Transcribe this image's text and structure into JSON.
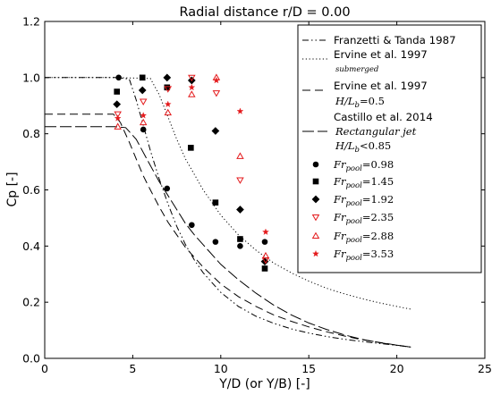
{
  "chart_data": {
    "type": "line",
    "title": "Radial distance r/D = 0.00",
    "xlabel": "Y/D (or Y/B) [-]",
    "ylabel": "Cp [-]",
    "xlim": [
      0,
      25
    ],
    "ylim": [
      0,
      1.2
    ],
    "xticks": [
      "0",
      "5",
      "10",
      "15",
      "20",
      "25"
    ],
    "yticks": [
      "0.0",
      "0.2",
      "0.4",
      "0.6",
      "0.8",
      "1.0",
      "1.2"
    ],
    "grid": false,
    "legend_position": "top-right",
    "series": [
      {
        "name": "Franzetti & Tanda 1987",
        "kind": "line",
        "style": "dashdotdot",
        "legend_lines": [
          "Franzetti & Tanda 1987"
        ],
        "x": [
          0,
          1,
          2,
          3,
          4,
          4.8,
          5.2,
          5.6,
          6,
          6.5,
          7,
          7.5,
          8,
          8.5,
          9,
          10,
          11,
          12,
          13,
          14,
          15,
          16,
          17,
          18,
          19,
          20,
          20.8
        ],
        "y": [
          1.0,
          1.0,
          1.0,
          1.0,
          1.0,
          0.995,
          0.92,
          0.83,
          0.74,
          0.64,
          0.55,
          0.47,
          0.405,
          0.35,
          0.305,
          0.235,
          0.185,
          0.15,
          0.125,
          0.105,
          0.09,
          0.078,
          0.068,
          0.06,
          0.053,
          0.046,
          0.04
        ]
      },
      {
        "name": "Ervine et al. 1997 submerged",
        "kind": "line",
        "style": "dotted",
        "legend_lines": [
          "Ervine et al. 1997",
          "submerged"
        ],
        "x": [
          0,
          2,
          4,
          6,
          6.5,
          7,
          7.5,
          8,
          8.5,
          9,
          9.5,
          10,
          11,
          12,
          13,
          14,
          15,
          16,
          17,
          18,
          19,
          20,
          20.8
        ],
        "y": [
          1.0,
          1.0,
          1.0,
          0.997,
          0.94,
          0.86,
          0.78,
          0.71,
          0.655,
          0.6,
          0.555,
          0.51,
          0.44,
          0.385,
          0.34,
          0.305,
          0.275,
          0.25,
          0.23,
          0.213,
          0.198,
          0.185,
          0.175
        ]
      },
      {
        "name": "Ervine et al. 1997 H/Lb=0.5",
        "kind": "line",
        "style": "dashed",
        "legend_lines": [
          "Ervine et al. 1997",
          "H/L",
          "b",
          "=0.5"
        ],
        "x": [
          0,
          2,
          3.9,
          4.3,
          4.8,
          5.2,
          5.6,
          6,
          6.5,
          7,
          7.5,
          8,
          9,
          10,
          11,
          12,
          13,
          14,
          15,
          16,
          17,
          18,
          19,
          20,
          20.8
        ],
        "y": [
          0.87,
          0.87,
          0.87,
          0.84,
          0.77,
          0.71,
          0.65,
          0.6,
          0.54,
          0.485,
          0.44,
          0.395,
          0.325,
          0.265,
          0.22,
          0.185,
          0.155,
          0.132,
          0.112,
          0.095,
          0.08,
          0.067,
          0.057,
          0.047,
          0.04
        ]
      },
      {
        "name": "Castillo et al. 2014",
        "kind": "line",
        "style": "longdash",
        "legend_lines": [
          "Castillo et al. 2014",
          "Rectangular jet",
          "H/L",
          "b",
          "<0.85"
        ],
        "x": [
          0,
          2,
          4,
          4.6,
          5.2,
          5.8,
          6.5,
          7,
          7.5,
          8,
          8.5,
          9,
          10,
          11,
          12,
          13,
          14,
          15,
          16,
          17,
          18,
          19,
          20,
          20.8
        ],
        "y": [
          0.825,
          0.825,
          0.825,
          0.822,
          0.78,
          0.71,
          0.63,
          0.58,
          0.53,
          0.48,
          0.44,
          0.405,
          0.335,
          0.28,
          0.232,
          0.19,
          0.155,
          0.126,
          0.103,
          0.084,
          0.068,
          0.056,
          0.047,
          0.04
        ]
      },
      {
        "name": "Fr_pool = 0.98",
        "kind": "scatter",
        "marker": "circle",
        "color": "#000000",
        "legend_main": "Fr",
        "legend_sub": "pool",
        "legend_value": "=0.98",
        "x": [
          4.2,
          5.6,
          6.95,
          8.35,
          9.7,
          11.1,
          12.5
        ],
        "y": [
          1.0,
          0.815,
          0.605,
          0.475,
          0.415,
          0.4,
          0.415
        ]
      },
      {
        "name": "Fr_pool = 1.45",
        "kind": "scatter",
        "marker": "square",
        "color": "#000000",
        "legend_main": "Fr",
        "legend_sub": "pool",
        "legend_value": "=1.45",
        "x": [
          4.1,
          5.55,
          6.95,
          8.3,
          9.7,
          11.1,
          12.5
        ],
        "y": [
          0.95,
          1.0,
          0.965,
          0.75,
          0.555,
          0.425,
          0.32
        ]
      },
      {
        "name": "Fr_pool = 1.92",
        "kind": "scatter",
        "marker": "diamond",
        "color": "#000000",
        "legend_main": "Fr",
        "legend_sub": "pool",
        "legend_value": "=1.92",
        "x": [
          4.1,
          5.55,
          6.95,
          8.35,
          9.7,
          11.1,
          12.5
        ],
        "y": [
          0.905,
          0.955,
          1.0,
          0.99,
          0.81,
          0.53,
          0.345
        ]
      },
      {
        "name": "Fr_pool = 2.35",
        "kind": "scatter",
        "marker": "triangle-down",
        "color": "#e41a1c",
        "legend_main": "Fr",
        "legend_sub": "pool",
        "legend_value": "=2.35",
        "x": [
          4.15,
          5.6,
          7.0,
          8.35,
          9.75,
          11.1,
          12.55
        ],
        "y": [
          0.87,
          0.915,
          0.96,
          1.0,
          0.945,
          0.635,
          0.35
        ]
      },
      {
        "name": "Fr_pool = 2.88",
        "kind": "scatter",
        "marker": "triangle-up",
        "color": "#e41a1c",
        "legend_main": "Fr",
        "legend_sub": "pool",
        "legend_value": "=2.88",
        "x": [
          4.15,
          5.6,
          7.0,
          8.35,
          9.75,
          11.1,
          12.55
        ],
        "y": [
          0.825,
          0.84,
          0.875,
          0.94,
          1.0,
          0.72,
          0.365
        ]
      },
      {
        "name": "Fr_pool = 3.53",
        "kind": "scatter",
        "marker": "star",
        "color": "#e41a1c",
        "legend_main": "Fr",
        "legend_sub": "pool",
        "legend_value": "=3.53",
        "x": [
          4.15,
          5.6,
          7.0,
          8.35,
          9.75,
          11.1,
          12.55
        ],
        "y": [
          0.855,
          0.865,
          0.905,
          0.965,
          0.99,
          0.88,
          0.45
        ]
      }
    ]
  }
}
